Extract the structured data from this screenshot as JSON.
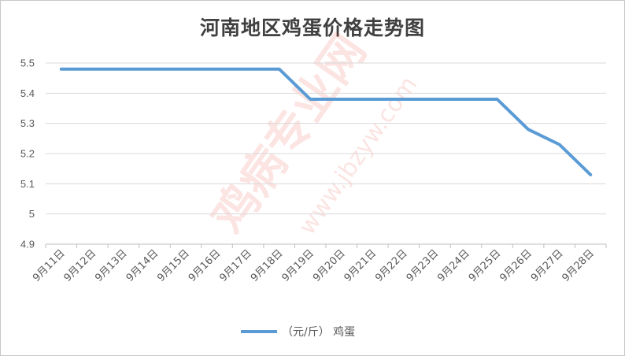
{
  "chart_data": {
    "type": "line",
    "title": "河南地区鸡蛋价格走势图",
    "categories": [
      "9月11日",
      "9月12日",
      "9月13日",
      "9月14日",
      "9月15日",
      "9月16日",
      "9月17日",
      "9月18日",
      "9月19日",
      "9月20日",
      "9月21日",
      "9月22日",
      "9月23日",
      "9月24日",
      "9月25日",
      "9月26日",
      "9月27日",
      "9月28日"
    ],
    "series": [
      {
        "name": "（元/斤） 鸡蛋",
        "color": "#5b9bd5",
        "values": [
          5.48,
          5.48,
          5.48,
          5.48,
          5.48,
          5.48,
          5.48,
          5.48,
          5.38,
          5.38,
          5.38,
          5.38,
          5.38,
          5.38,
          5.38,
          5.28,
          5.23,
          5.13
        ]
      }
    ],
    "ylim": [
      4.9,
      5.5
    ],
    "yticks": [
      "4.9",
      "5",
      "5.1",
      "5.2",
      "5.3",
      "5.4",
      "5.5"
    ],
    "xlabel": "",
    "ylabel": "",
    "grid": true,
    "legend": "bottom-center"
  },
  "watermark": {
    "text": "鸡病专业网",
    "url": "www.jbzyw.com"
  }
}
